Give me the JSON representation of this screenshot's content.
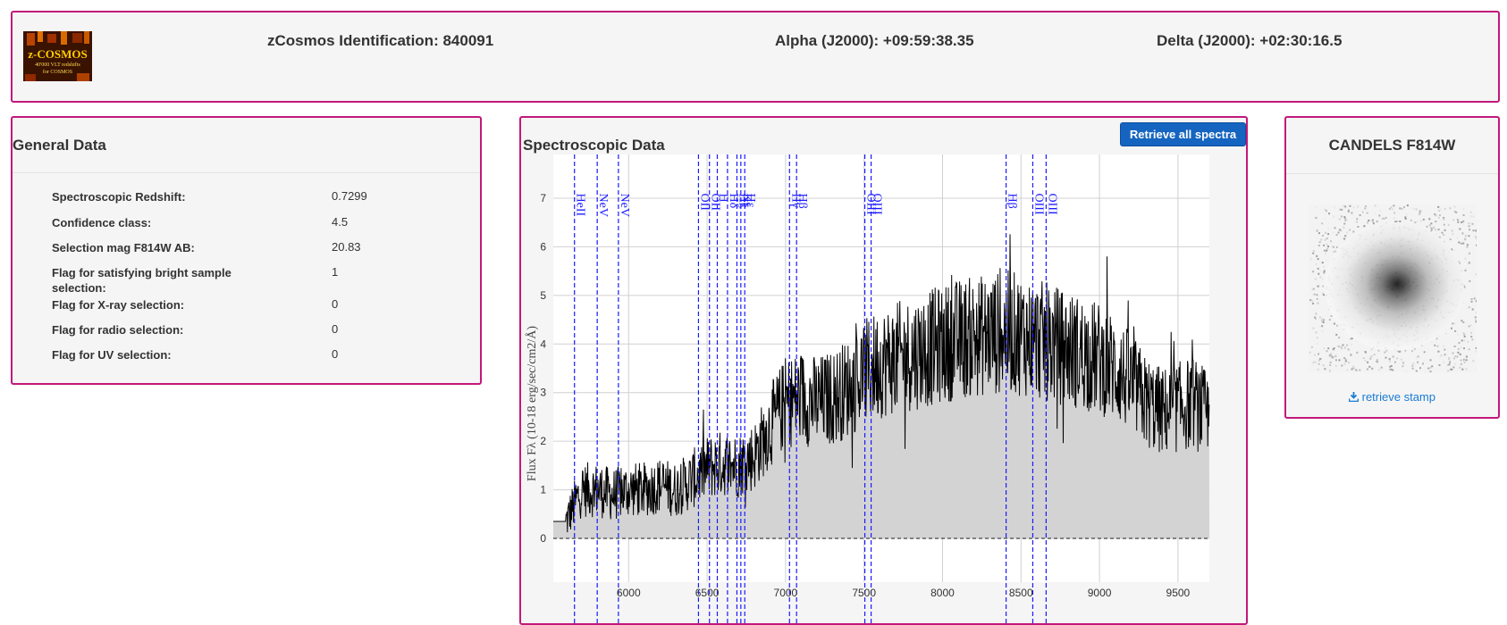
{
  "header": {
    "logo": {
      "line1": "z-COSMOS",
      "line2": "40'000 VLT redshifts",
      "line3": "for COSMOS"
    },
    "identification": "zCosmos Identification: 840091",
    "alpha": "Alpha (J2000): +09:59:38.35",
    "delta": "Delta (J2000): +02:30:16.5"
  },
  "general": {
    "title": "General Data",
    "rows": [
      {
        "label": "Spectroscopic Redshift:",
        "value": "0.7299"
      },
      {
        "label": "Confidence class:",
        "value": "4.5"
      },
      {
        "label": "Selection mag F814W AB:",
        "value": "20.83"
      },
      {
        "label": "Flag for satisfying bright sample selection:",
        "value": "1"
      },
      {
        "label": "Flag for X-ray selection:",
        "value": "0"
      },
      {
        "label": "Flag for radio selection:",
        "value": "0"
      },
      {
        "label": "Flag for UV selection:",
        "value": "0"
      }
    ]
  },
  "spectro": {
    "title": "Spectroscopic Data",
    "retrieve_button": "Retrieve all spectra"
  },
  "candels": {
    "title": "CANDELS F814W",
    "stamp_icon": "download-icon",
    "stamp_link": "retrieve stamp"
  },
  "colors": {
    "panel_border": "#c2187a",
    "button": "#1565c0",
    "line_marker": "#1a1aff",
    "link": "#1a7bd6"
  },
  "chart_data": {
    "type": "area",
    "ylabel": "Flux Fλ (10-18 erg/sec/cm2/Å)",
    "xlabel": "",
    "xlim": [
      5520,
      9700
    ],
    "ylim": [
      -0.9,
      7.9
    ],
    "x_ticks": [
      6000,
      6500,
      7000,
      7500,
      8000,
      8500,
      9000,
      9500
    ],
    "y_ticks": [
      0,
      1,
      2,
      3,
      4,
      5,
      6,
      7
    ],
    "grid": true,
    "zero_line": true,
    "series": [
      {
        "x": [
          5520,
          5600,
          5700,
          5800,
          5900,
          6000,
          6100,
          6200,
          6300,
          6400,
          6500,
          6600,
          6700,
          6800,
          6900,
          7000,
          7100,
          7200,
          7300,
          7400,
          7500,
          7600,
          7700,
          7800,
          7900,
          8000,
          8100,
          8200,
          8300,
          8400,
          8500,
          8600,
          8700,
          8800,
          8900,
          9000,
          9100,
          9200,
          9300,
          9400,
          9500,
          9600,
          9700
        ],
        "y": [
          0.35,
          0.35,
          1.0,
          1.0,
          0.9,
          1.0,
          1.0,
          1.1,
          1.0,
          1.2,
          1.45,
          1.55,
          1.5,
          1.7,
          2.3,
          2.8,
          2.9,
          2.8,
          2.9,
          3.1,
          3.4,
          3.6,
          3.7,
          3.8,
          3.9,
          4.0,
          4.1,
          4.15,
          4.2,
          4.25,
          4.2,
          4.1,
          4.0,
          3.9,
          3.8,
          3.7,
          3.5,
          3.2,
          2.8,
          2.6,
          2.7,
          2.8,
          2.5
        ]
      }
    ],
    "lines": [
      {
        "label": "HeII",
        "x": 5655
      },
      {
        "label": "NeV",
        "x": 5800
      },
      {
        "label": "NeV",
        "x": 5935
      },
      {
        "label": "OII",
        "x": 6445
      },
      {
        "label": "OII",
        "x": 6515
      },
      {
        "label": "H",
        "x": 6565
      },
      {
        "label": "Hδ",
        "x": 6630
      },
      {
        "label": "Hk",
        "x": 6690
      },
      {
        "label": "Ks",
        "x": 6715
      },
      {
        "label": "Hε",
        "x": 6740
      },
      {
        "label": "Hγ",
        "x": 7025
      },
      {
        "label": "Hβ",
        "x": 7070
      },
      {
        "label": "OIII",
        "x": 7505
      },
      {
        "label": "OIII",
        "x": 7545
      },
      {
        "label": "Hβ",
        "x": 8405
      },
      {
        "label": "OIII",
        "x": 8575
      },
      {
        "label": "OIII",
        "x": 8660
      }
    ]
  }
}
